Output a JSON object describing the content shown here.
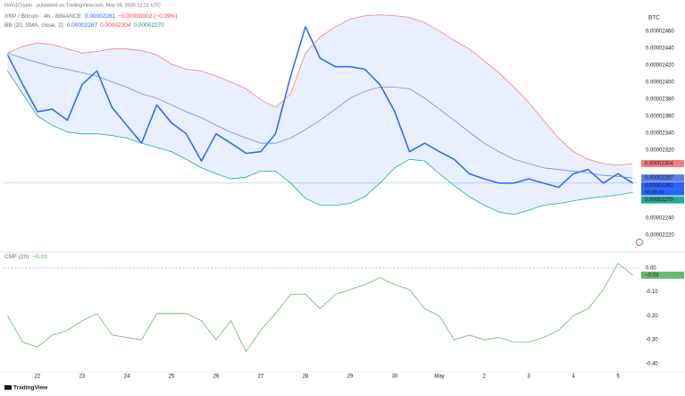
{
  "header": {
    "attribution": "Omn1Crypto · published on TradingView.com, May 05, 2025 12:21 UTC",
    "symbol": "XRP / Bitcoin · 4h · BINANCE",
    "change": "−0.00000002 (−0.09%)",
    "indicator": "BB (20, SMA, close, 2)",
    "logo": "TradingView"
  },
  "chart_data": [
    {
      "type": "line",
      "currency": "BTC",
      "countdown": "03:38:30",
      "xlim": [
        21.25,
        35.45
      ],
      "ylim": [
        2.486e-05,
        2.204e-05
      ],
      "band_fill": "#e9efff",
      "yticks": [
        {
          "value": 2.46e-05,
          "label": "0.00002460"
        },
        {
          "value": 2.44e-05,
          "label": "0.00002440"
        },
        {
          "value": 2.42e-05,
          "label": "0.00002420"
        },
        {
          "value": 2.4e-05,
          "label": "0.00002400"
        },
        {
          "value": 2.38e-05,
          "label": "0.00002380"
        },
        {
          "value": 2.36e-05,
          "label": "0.00002360"
        },
        {
          "value": 2.34e-05,
          "label": "0.00002340"
        },
        {
          "value": 2.32e-05,
          "label": "0.00002320"
        },
        {
          "value": 2.24e-05,
          "label": "0.00002240"
        },
        {
          "value": 2.22e-05,
          "label": "0.00002220"
        }
      ],
      "x": [
        21.33,
        21.67,
        22,
        22.33,
        22.67,
        23,
        23.33,
        23.67,
        24,
        24.33,
        24.67,
        25,
        25.33,
        25.67,
        26,
        26.33,
        26.67,
        27,
        27.33,
        27.67,
        28,
        28.33,
        28.67,
        29,
        29.33,
        29.67,
        30,
        30.33,
        30.67,
        31,
        31.33,
        31.67,
        32,
        32.33,
        32.67,
        33,
        33.33,
        33.67,
        34,
        34.33,
        34.67,
        35,
        35.33
      ],
      "series": [
        {
          "name": "XRP / Bitcoin",
          "color": "#2962ff",
          "width": 1.5,
          "last_label": "0.00002281",
          "values": [
            2.432e-05,
            2.397e-05,
            2.365e-05,
            2.368e-05,
            2.355e-05,
            2.397e-05,
            2.413e-05,
            2.37e-05,
            2.349e-05,
            2.328e-05,
            2.373e-05,
            2.352e-05,
            2.339e-05,
            2.307e-05,
            2.339e-05,
            2.328e-05,
            2.316e-05,
            2.318e-05,
            2.339e-05,
            2.407e-05,
            2.465e-05,
            2.428e-05,
            2.418e-05,
            2.418e-05,
            2.415e-05,
            2.397e-05,
            2.365e-05,
            2.318e-05,
            2.328e-05,
            2.318e-05,
            2.309e-05,
            2.292e-05,
            2.286e-05,
            2.281e-05,
            2.281e-05,
            2.286e-05,
            2.281e-05,
            2.276e-05,
            2.292e-05,
            2.297e-05,
            2.281e-05,
            2.292e-05,
            2.281e-05
          ]
        },
        {
          "name": "BB upper",
          "color": "#f77c80",
          "width": 0.8,
          "last_label": "0.00002304",
          "values": [
            2.434e-05,
            2.442e-05,
            2.446e-05,
            2.444e-05,
            2.439e-05,
            2.434e-05,
            2.436e-05,
            2.439e-05,
            2.439e-05,
            2.437e-05,
            2.432e-05,
            2.421e-05,
            2.415e-05,
            2.413e-05,
            2.407e-05,
            2.4e-05,
            2.392e-05,
            2.379e-05,
            2.37e-05,
            2.386e-05,
            2.434e-05,
            2.453e-05,
            2.465e-05,
            2.474e-05,
            2.478e-05,
            2.479e-05,
            2.478e-05,
            2.476e-05,
            2.47e-05,
            2.46e-05,
            2.449e-05,
            2.439e-05,
            2.425e-05,
            2.411e-05,
            2.394e-05,
            2.376e-05,
            2.355e-05,
            2.334e-05,
            2.318e-05,
            2.309e-05,
            2.304e-05,
            2.302e-05,
            2.304e-05
          ]
        },
        {
          "name": "BB basis",
          "color": "#5b7fe8",
          "width": 0.7,
          "last_label": "0.00002287",
          "values": [
            2.434e-05,
            2.428e-05,
            2.423e-05,
            2.418e-05,
            2.415e-05,
            2.411e-05,
            2.407e-05,
            2.4e-05,
            2.394e-05,
            2.386e-05,
            2.381e-05,
            2.373e-05,
            2.365e-05,
            2.358e-05,
            2.349e-05,
            2.341e-05,
            2.334e-05,
            2.328e-05,
            2.328e-05,
            2.334e-05,
            2.344e-05,
            2.355e-05,
            2.368e-05,
            2.381e-05,
            2.389e-05,
            2.394e-05,
            2.394e-05,
            2.392e-05,
            2.381e-05,
            2.368e-05,
            2.355e-05,
            2.341e-05,
            2.328e-05,
            2.318e-05,
            2.309e-05,
            2.304e-05,
            2.299e-05,
            2.297e-05,
            2.295e-05,
            2.293e-05,
            2.29e-05,
            2.289e-05,
            2.287e-05
          ]
        },
        {
          "name": "BB lower",
          "color": "#22ab94",
          "width": 0.8,
          "last_label": "0.00002270",
          "values": [
            2.413e-05,
            2.386e-05,
            2.36e-05,
            2.349e-05,
            2.341e-05,
            2.339e-05,
            2.339e-05,
            2.337e-05,
            2.334e-05,
            2.328e-05,
            2.323e-05,
            2.318e-05,
            2.309e-05,
            2.299e-05,
            2.292e-05,
            2.286e-05,
            2.288e-05,
            2.295e-05,
            2.295e-05,
            2.281e-05,
            2.263e-05,
            2.255e-05,
            2.255e-05,
            2.257e-05,
            2.265e-05,
            2.281e-05,
            2.299e-05,
            2.309e-05,
            2.307e-05,
            2.292e-05,
            2.278e-05,
            2.265e-05,
            2.255e-05,
            2.247e-05,
            2.244e-05,
            2.249e-05,
            2.255e-05,
            2.257e-05,
            2.26e-05,
            2.263e-05,
            2.265e-05,
            2.267e-05,
            2.27e-05
          ]
        }
      ]
    },
    {
      "type": "line",
      "title": "CMF (20)",
      "xlim": [
        21.25,
        35.45
      ],
      "ylim": [
        0.044,
        -0.43
      ],
      "yticks": [
        {
          "value": 0,
          "label": "0.00"
        },
        {
          "value": -0.1,
          "label": "-0.10"
        },
        {
          "value": -0.2,
          "label": "-0.20"
        },
        {
          "value": -0.3,
          "label": "-0.30"
        },
        {
          "value": -0.4,
          "label": "-0.40"
        }
      ],
      "xticks": [
        22,
        23,
        24,
        25,
        26,
        27,
        28,
        29,
        30,
        {
          "value": 31,
          "label": "May"
        },
        {
          "value": 32,
          "label": "2"
        },
        {
          "value": 33,
          "label": "3"
        },
        {
          "value": 34,
          "label": "4"
        },
        {
          "value": 35,
          "label": "5"
        }
      ],
      "x": [
        21.33,
        21.67,
        22,
        22.33,
        22.67,
        23,
        23.33,
        23.67,
        24,
        24.33,
        24.67,
        25,
        25.33,
        25.67,
        26,
        26.33,
        26.67,
        27,
        27.33,
        27.67,
        28,
        28.33,
        28.67,
        29,
        29.33,
        29.67,
        30,
        30.33,
        30.67,
        31,
        31.33,
        31.67,
        32,
        32.33,
        32.67,
        33,
        33.33,
        33.67,
        34,
        34.33,
        34.67,
        35,
        35.33
      ],
      "series": [
        {
          "name": "CMF",
          "color": "#66bb6a",
          "width": 0.8,
          "last_label": "−0.03",
          "values": [
            -0.2,
            -0.31,
            -0.33,
            -0.28,
            -0.26,
            -0.22,
            -0.19,
            -0.28,
            -0.29,
            -0.3,
            -0.19,
            -0.19,
            -0.19,
            -0.22,
            -0.3,
            -0.22,
            -0.35,
            -0.26,
            -0.19,
            -0.11,
            -0.11,
            -0.17,
            -0.11,
            -0.09,
            -0.07,
            -0.04,
            -0.07,
            -0.09,
            -0.17,
            -0.2,
            -0.3,
            -0.28,
            -0.3,
            -0.29,
            -0.31,
            -0.31,
            -0.29,
            -0.26,
            -0.2,
            -0.17,
            -0.09,
            0.02,
            -0.03
          ]
        }
      ]
    }
  ]
}
